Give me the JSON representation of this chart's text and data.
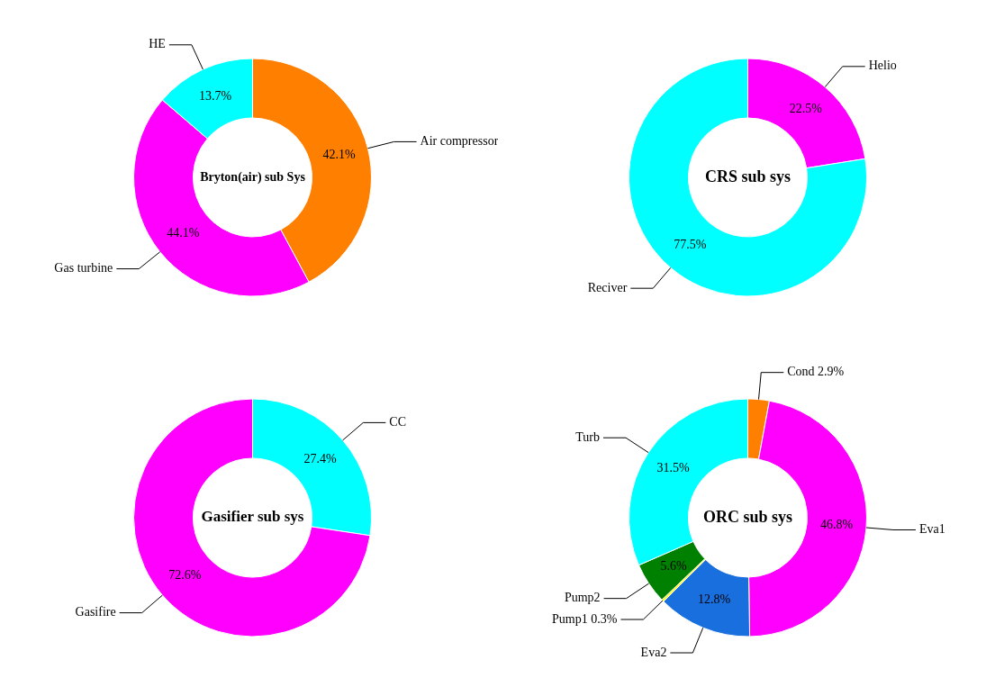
{
  "chart_data": [
    {
      "type": "donut",
      "title": "Bryton(air) sub Sys",
      "categories": [
        "Air compressor",
        "Gas turbine",
        "HE"
      ],
      "values": [
        42.1,
        44.1,
        13.7
      ],
      "value_labels": [
        "42.1%",
        "44.1%",
        "13.7%"
      ],
      "colors": [
        "#ff8000",
        "#ff00ff",
        "#00ffff"
      ],
      "legend": false
    },
    {
      "type": "donut",
      "title": "CRS sub sys",
      "categories": [
        "Helio",
        "Reciver"
      ],
      "values": [
        22.5,
        77.5
      ],
      "value_labels": [
        "22.5%",
        "77.5%"
      ],
      "colors": [
        "#ff00ff",
        "#00ffff"
      ],
      "legend": false
    },
    {
      "type": "donut",
      "title": "Gasifier sub sys",
      "categories": [
        "CC",
        "Gasifire"
      ],
      "values": [
        27.4,
        72.6
      ],
      "value_labels": [
        "27.4%",
        "72.6%"
      ],
      "colors": [
        "#00ffff",
        "#ff00ff"
      ],
      "legend": false
    },
    {
      "type": "donut",
      "title": "ORC sub sys",
      "categories": [
        "Cond",
        "Eva1",
        "Eva2",
        "Pump1",
        "Pump2",
        "Turb"
      ],
      "values": [
        2.9,
        46.8,
        12.8,
        0.3,
        5.6,
        31.5
      ],
      "value_labels": [
        "2.9%",
        "46.8%",
        "12.8%",
        "0.3%",
        "5.6%",
        "31.5%"
      ],
      "colors": [
        "#ff8000",
        "#ff00ff",
        "#1a6fdf",
        "#ffff00",
        "#008000",
        "#00ffff"
      ],
      "legend": false
    }
  ]
}
